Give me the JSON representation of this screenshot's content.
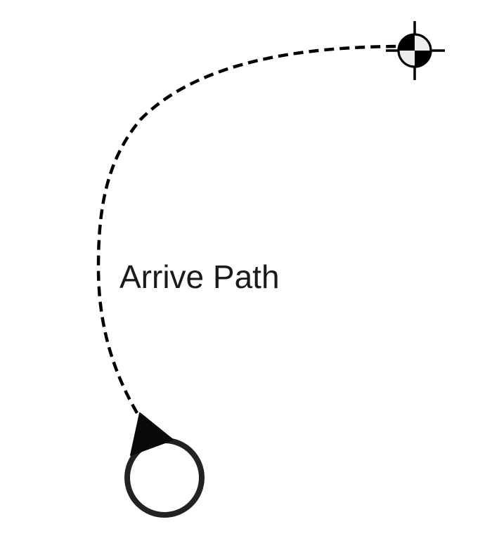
{
  "diagram": {
    "path_label": "Arrive Path",
    "path_style": "dashed",
    "start_marker": "agent-circle-with-heading-triangle",
    "end_marker": "target-crosshair-checkered",
    "colors": {
      "ink": "#1a1a1a",
      "path": "#000000",
      "target_light": "#ececec",
      "background": "#ffffff"
    }
  }
}
